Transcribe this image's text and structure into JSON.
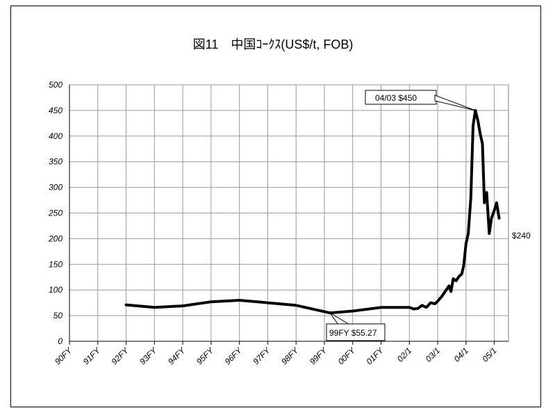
{
  "chart_data": {
    "type": "line",
    "title": "図11　中国ｺｰｸｽ(US$/t, FOB)",
    "xlabel": "",
    "ylabel": "",
    "ylim": [
      0,
      500
    ],
    "yticks": [
      0,
      50,
      100,
      150,
      200,
      250,
      300,
      350,
      400,
      450,
      500
    ],
    "xlim": [
      0,
      15.5
    ],
    "x_tick_labels": [
      "90FY",
      "91FY",
      "92FY",
      "93FY",
      "94FY",
      "95FY",
      "96FY",
      "97FY",
      "98FY",
      "99FY",
      "00FY",
      "01FY",
      "02/1",
      "03/1",
      "04/1",
      "05/1"
    ],
    "grid": true,
    "legend": "none",
    "series": [
      {
        "color": "#000000",
        "points": [
          [
            2.0,
            71
          ],
          [
            3.0,
            66
          ],
          [
            4.0,
            69
          ],
          [
            5.0,
            77
          ],
          [
            6.0,
            80
          ],
          [
            7.0,
            75
          ],
          [
            8.0,
            70
          ],
          [
            9.2,
            55.27
          ],
          [
            10.0,
            59
          ],
          [
            11.0,
            66
          ],
          [
            12.0,
            66
          ],
          [
            12.15,
            63
          ],
          [
            12.3,
            64
          ],
          [
            12.45,
            70
          ],
          [
            12.6,
            66
          ],
          [
            12.75,
            75
          ],
          [
            12.9,
            73
          ],
          [
            13.0,
            78
          ],
          [
            13.15,
            88
          ],
          [
            13.3,
            100
          ],
          [
            13.4,
            108
          ],
          [
            13.47,
            97
          ],
          [
            13.55,
            122
          ],
          [
            13.65,
            118
          ],
          [
            13.75,
            126
          ],
          [
            13.85,
            131
          ],
          [
            13.92,
            148
          ],
          [
            14.0,
            190
          ],
          [
            14.08,
            210
          ],
          [
            14.17,
            280
          ],
          [
            14.25,
            420
          ],
          [
            14.33,
            450
          ],
          [
            14.42,
            430
          ],
          [
            14.5,
            405
          ],
          [
            14.58,
            385
          ],
          [
            14.65,
            270
          ],
          [
            14.73,
            290
          ],
          [
            14.82,
            210
          ],
          [
            14.9,
            240
          ],
          [
            15.0,
            255
          ],
          [
            15.08,
            270
          ],
          [
            15.17,
            240
          ]
        ]
      }
    ],
    "annotations": [
      {
        "label": "04/03 $450",
        "x": 14.33,
        "y": 450
      },
      {
        "label": "99FY $55.27",
        "x": 9.2,
        "y": 55.27
      },
      {
        "label": "$240",
        "x": 15.17,
        "y": 240
      }
    ]
  }
}
